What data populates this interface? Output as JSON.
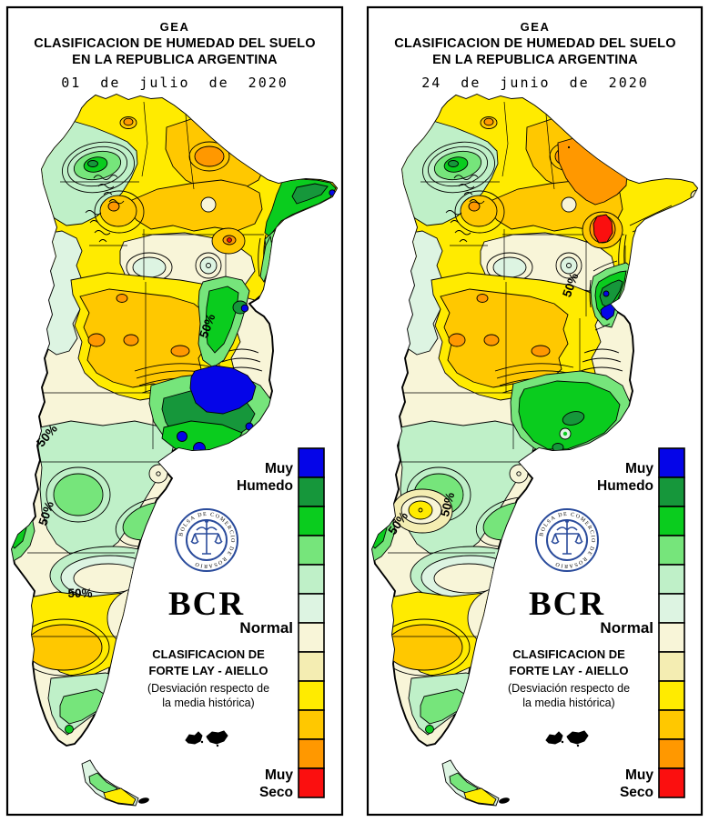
{
  "palette": {
    "blue": "#0505e8",
    "dark_green": "#16973b",
    "green": "#0acc1e",
    "light_green": "#76e57b",
    "pale_green": "#bff0c8",
    "very_pale_green": "#ddf4e2",
    "cream": "#f8f5d8",
    "pale_yellow": "#f4edb2",
    "yellow": "#ffeb00",
    "gold": "#ffc800",
    "orange": "#ff9800",
    "red": "#fb0f0f",
    "seal_navy": "#2a4b9b",
    "bcr_blue": "#1d3a8c",
    "ink": "#000000",
    "paper": "#ffffff"
  },
  "header": {
    "org": "GEA",
    "title_line1": "CLASIFICACION DE HUMEDAD DEL SUELO",
    "title_line2": "EN LA REPUBLICA ARGENTINA"
  },
  "maps": [
    {
      "date": "01 de julio de 2020",
      "contour_labels": [
        "50%",
        "50%",
        "50%",
        "50%"
      ]
    },
    {
      "date": "24 de junio de 2020",
      "contour_labels": [
        "50%",
        "50%",
        "50%"
      ]
    }
  ],
  "legend": {
    "cells": [
      "blue",
      "dark_green",
      "green",
      "light_green",
      "pale_green",
      "very_pale_green",
      "cream",
      "pale_yellow",
      "yellow",
      "gold",
      "orange",
      "red"
    ],
    "top_line1": "Muy",
    "top_line2": "Humedo",
    "middle": "Normal",
    "bottom_line1": "Muy",
    "bottom_line2": "Seco"
  },
  "logo": {
    "abbr": "BCR",
    "seal_text": "BOLSA DE COMERCIO DE ROSARIO"
  },
  "classification": {
    "line1": "CLASIFICACION DE",
    "line2": "FORTE LAY - AIELLO",
    "line3": "(Desviación respecto de",
    "line4": "la media histórica)"
  }
}
